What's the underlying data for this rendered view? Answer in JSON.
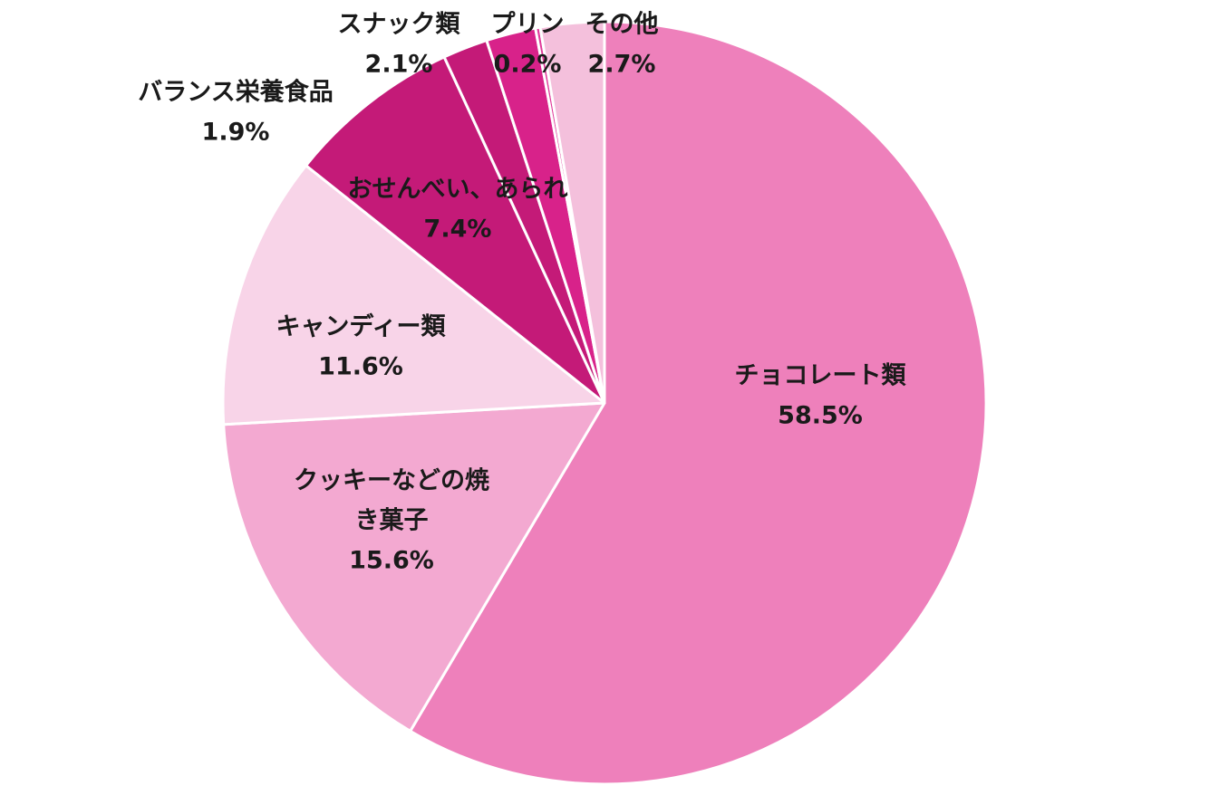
{
  "chart_data": {
    "type": "pie",
    "title": "",
    "start_angle": "12 o'clock",
    "direction": "clockwise",
    "slices": [
      {
        "name": "チョコレート類",
        "label_lines": [
          "チョコレート類"
        ],
        "pct_label": "58.5%",
        "value": 58.5,
        "color": "#ee80bb"
      },
      {
        "name": "クッキーなどの焼き菓子",
        "label_lines": [
          "クッキーなどの焼",
          "き菓子"
        ],
        "pct_label": "15.6%",
        "value": 15.6,
        "color": "#f3a9d1"
      },
      {
        "name": "キャンディー類",
        "label_lines": [
          "キャンディー類"
        ],
        "pct_label": "11.6%",
        "value": 11.6,
        "color": "#f8d4e8"
      },
      {
        "name": "おせんべい、あられ",
        "label_lines": [
          "おせんべい、あられ"
        ],
        "pct_label": "7.4%",
        "value": 7.4,
        "color": "#c41a78"
      },
      {
        "name": "バランス栄養食品",
        "label_lines": [
          "バランス栄養食品"
        ],
        "pct_label": "1.9%",
        "value": 1.9,
        "color": "#c41a78"
      },
      {
        "name": "スナック類",
        "label_lines": [
          "スナック類"
        ],
        "pct_label": "2.1%",
        "value": 2.1,
        "color": "#d8228a"
      },
      {
        "name": "プリン",
        "label_lines": [
          "プリン"
        ],
        "pct_label": "0.2%",
        "value": 0.2,
        "color": "#e0399a"
      },
      {
        "name": "その他",
        "label_lines": [
          "その他"
        ],
        "pct_label": "2.7%",
        "value": 2.7,
        "color": "#f4c0dc"
      }
    ],
    "slice_border_color": "#ffffff",
    "legend": "none"
  }
}
